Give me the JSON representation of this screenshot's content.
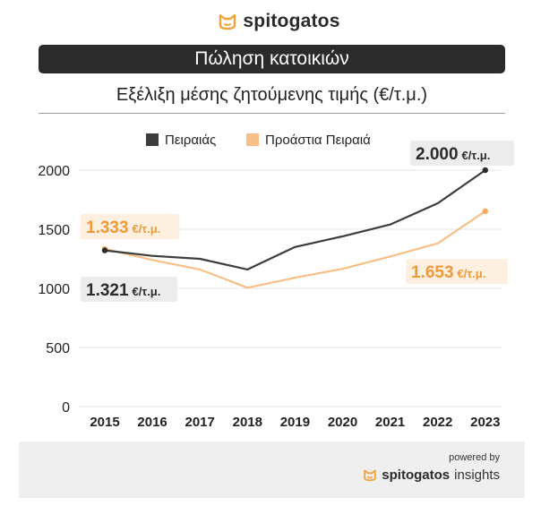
{
  "brand": {
    "name": "spitogatos"
  },
  "header": {
    "title": "Πώληση κατοικιών",
    "subtitle": "Εξέλιξη μέσης ζητούμενης τιμής (€/τ.μ.)"
  },
  "footer": {
    "powered_by": "powered by",
    "brand_bold": "spitogatos",
    "brand_light": "insights"
  },
  "colors": {
    "series1": "#3d3d3d",
    "series2": "#f7bf85",
    "accent_text": "#ee9a3a",
    "grid": "#e6e6e6"
  },
  "chart_data": {
    "type": "line",
    "title": "Εξέλιξη μέσης ζητούμενης τιμής (€/τ.μ.)",
    "xlabel": "",
    "ylabel": "",
    "categories": [
      "2015",
      "2016",
      "2017",
      "2018",
      "2019",
      "2020",
      "2021",
      "2022",
      "2023"
    ],
    "ylim": [
      0,
      2000
    ],
    "yticks": [
      0,
      500,
      1000,
      1500,
      2000
    ],
    "grid": true,
    "legend_position": "top",
    "series": [
      {
        "name": "Πειραιάς",
        "values": [
          1321,
          1275,
          1250,
          1160,
          1350,
          1440,
          1540,
          1720,
          2000
        ]
      },
      {
        "name": "Προάστια Πειραιά",
        "values": [
          1333,
          1240,
          1160,
          1005,
          1090,
          1165,
          1270,
          1380,
          1653
        ]
      }
    ],
    "annotations": [
      {
        "series": "Πειραιάς",
        "category": "2015",
        "value": "1.321",
        "unit": "€/τ.μ."
      },
      {
        "series": "Προάστια Πειραιά",
        "category": "2015",
        "value": "1.333",
        "unit": "€/τ.μ."
      },
      {
        "series": "Πειραιάς",
        "category": "2023",
        "value": "2.000",
        "unit": "€/τ.μ."
      },
      {
        "series": "Προάστια Πειραιά",
        "category": "2023",
        "value": "1.653",
        "unit": "€/τ.μ."
      }
    ]
  }
}
